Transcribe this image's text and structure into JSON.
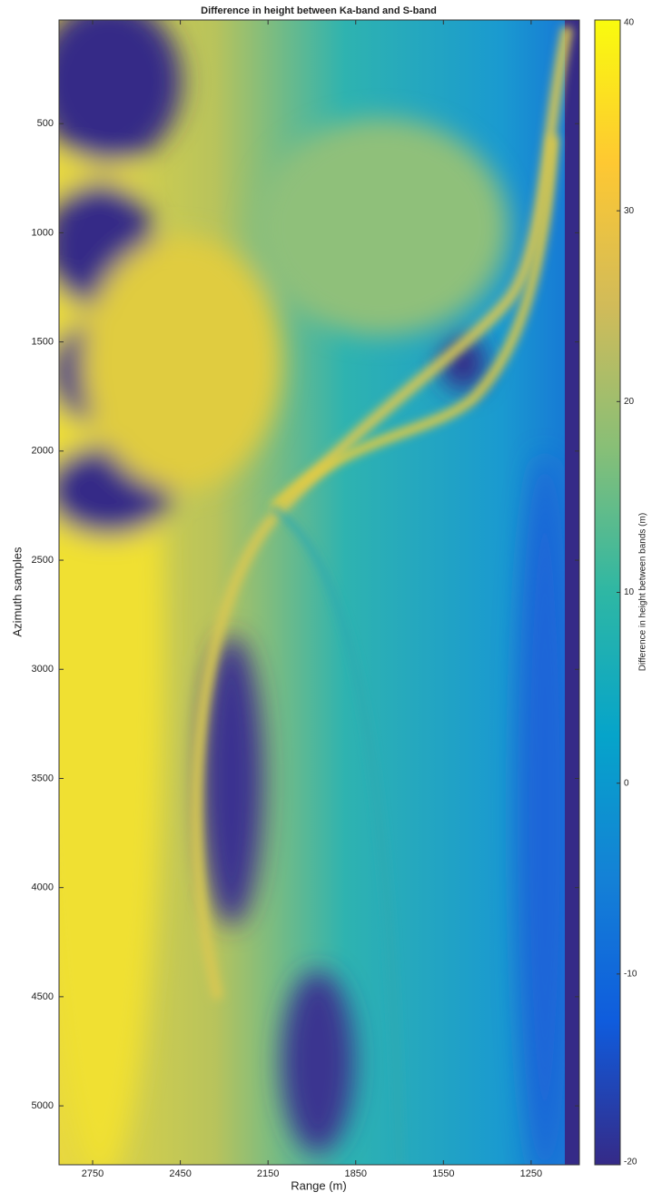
{
  "chart_data": {
    "type": "heatmap",
    "title": "Difference in height between Ka-band and S-band",
    "x_label": "Range (m)",
    "y_label": "Azimuth samples",
    "xlim": [
      1085,
      2865
    ],
    "x_reversed": true,
    "xticks": [
      2750,
      2450,
      2150,
      1850,
      1550,
      1250
    ],
    "ylim": [
      25,
      5270
    ],
    "y_reversed": true,
    "yticks": [
      500,
      1000,
      1500,
      2000,
      2500,
      3000,
      3500,
      4000,
      4500,
      5000
    ],
    "colorbar": {
      "label": "Difference in height between bands (m)",
      "clim": [
        -20,
        40
      ],
      "ticks": [
        -20,
        -10,
        0,
        10,
        20,
        30,
        40
      ],
      "colors": [
        "#352a87",
        "#0f5cdd",
        "#1481d6",
        "#06a4ca",
        "#2eb7a4",
        "#87bf77",
        "#d1bb59",
        "#fec832",
        "#f9fb0e"
      ]
    }
  }
}
